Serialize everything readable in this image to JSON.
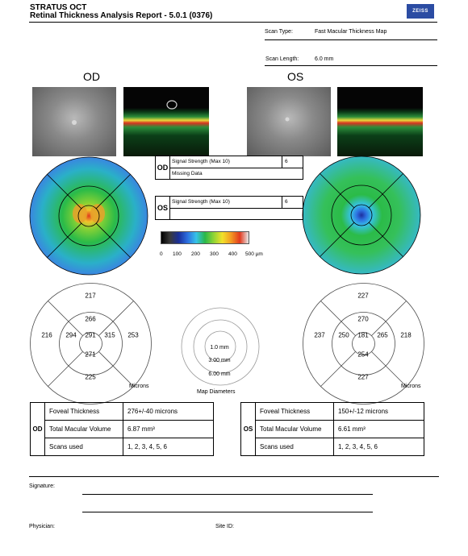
{
  "header": {
    "title_line1": "STRATUS OCT",
    "title_line2": "Retinal Thickness Analysis Report - 5.0.1 (0376)",
    "logo_text": "ZEISS"
  },
  "scan": {
    "type_label": "Scan Type:",
    "type_value": "Fast Macular Thickness Map",
    "length_label": "Scan Length:",
    "length_value": "6.0 mm"
  },
  "eyes": {
    "od": "OD",
    "os": "OS"
  },
  "signal": {
    "od": {
      "eye": "OD",
      "label": "Signal Strength (Max 10)",
      "value": "6",
      "note": "Missing Data"
    },
    "os": {
      "eye": "OS",
      "label": "Signal Strength (Max 10)",
      "value": "6",
      "note": ""
    }
  },
  "scale": {
    "ticks": [
      "0",
      "100",
      "200",
      "300",
      "400",
      "500 µm"
    ]
  },
  "od_grid": {
    "superior_outer": "217",
    "nasal_outer": "216",
    "temporal_outer": "253",
    "inferior_outer": "225",
    "superior_inner": "266",
    "nasal_inner": "294",
    "center": "291",
    "temporal_inner": "315",
    "inferior_inner": "271",
    "units": "Microns"
  },
  "os_grid": {
    "superior_outer": "227",
    "nasal_outer": "237",
    "temporal_outer": "218",
    "inferior_outer": "227",
    "superior_inner": "270",
    "nasal_inner": "250",
    "center": "181",
    "temporal_inner": "265",
    "inferior_inner": "254",
    "units": "Microns"
  },
  "diameters": {
    "d1": "1.0 mm",
    "d2": "3.00 mm",
    "d3": "6.00 mm",
    "caption": "Map Diameters"
  },
  "od_table": {
    "eye": "OD",
    "rows": [
      {
        "label": "Foveal Thickness",
        "value": "276+/-40 microns"
      },
      {
        "label": "Total Macular Volume",
        "value": "6.87 mm³"
      },
      {
        "label": "Scans used",
        "value": "1, 2, 3, 4, 5, 6"
      }
    ]
  },
  "os_table": {
    "eye": "OS",
    "rows": [
      {
        "label": "Foveal Thickness",
        "value": "150+/-12 microns"
      },
      {
        "label": "Total Macular Volume",
        "value": "6.61 mm³"
      },
      {
        "label": "Scans used",
        "value": "1, 2, 3, 4, 5, 6"
      }
    ]
  },
  "footer": {
    "signature_label": "Signature:",
    "physician_label": "Physician:",
    "siteid_label": "Site ID:"
  }
}
